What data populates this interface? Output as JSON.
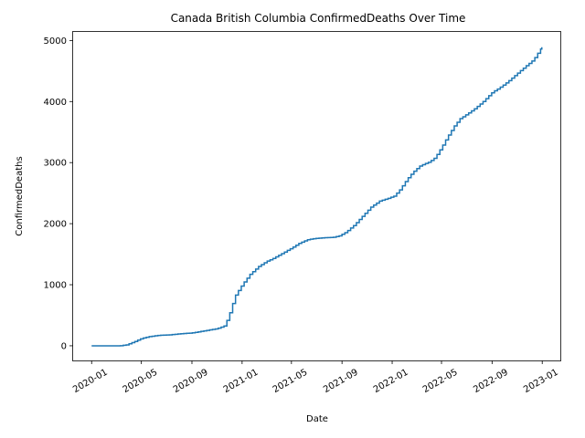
{
  "chart_data": {
    "type": "line",
    "title": "Canada British Columbia ConfirmedDeaths Over Time",
    "xlabel": "Date",
    "ylabel": "ConfirmedDeaths",
    "xlim": [
      "2019-11-17",
      "2023-02-14"
    ],
    "ylim": [
      -240,
      5140
    ],
    "x_ticks": [
      "2020-01",
      "2020-05",
      "2020-09",
      "2021-01",
      "2021-05",
      "2021-09",
      "2022-01",
      "2022-05",
      "2022-09",
      "2023-01"
    ],
    "y_ticks": [
      0,
      1000,
      2000,
      3000,
      4000,
      5000
    ],
    "grid": false,
    "line_color": "#1f77b4",
    "series": [
      {
        "x": [
          "2020-01-01",
          "2020-03-10",
          "2020-03-25",
          "2020-04-15",
          "2020-05-01",
          "2020-05-20",
          "2020-06-10",
          "2020-07-10",
          "2020-08-01",
          "2020-09-01",
          "2020-10-01",
          "2020-11-01",
          "2020-11-20",
          "2020-12-01",
          "2020-12-15",
          "2021-01-01",
          "2021-01-20",
          "2021-02-10",
          "2021-03-01",
          "2021-03-20",
          "2021-04-10",
          "2021-05-01",
          "2021-05-20",
          "2021-06-10",
          "2021-07-01",
          "2021-07-20",
          "2021-08-10",
          "2021-08-25",
          "2021-09-10",
          "2021-10-01",
          "2021-10-20",
          "2021-11-10",
          "2021-12-01",
          "2021-12-20",
          "2022-01-05",
          "2022-01-20",
          "2022-02-05",
          "2022-02-20",
          "2022-03-10",
          "2022-04-01",
          "2022-04-15",
          "2022-05-01",
          "2022-05-15",
          "2022-06-01",
          "2022-06-15",
          "2022-07-01",
          "2022-07-20",
          "2022-08-10",
          "2022-09-01",
          "2022-09-20",
          "2022-10-10",
          "2022-11-01",
          "2022-11-20",
          "2022-12-10",
          "2022-12-31"
        ],
        "y": [
          0,
          0,
          15,
          70,
          120,
          150,
          170,
          180,
          195,
          210,
          245,
          280,
          330,
          520,
          820,
          1000,
          1170,
          1300,
          1380,
          1440,
          1520,
          1600,
          1680,
          1740,
          1760,
          1770,
          1775,
          1800,
          1860,
          1980,
          2120,
          2270,
          2370,
          2410,
          2450,
          2560,
          2720,
          2840,
          2950,
          3010,
          3080,
          3250,
          3420,
          3600,
          3720,
          3790,
          3880,
          4000,
          4150,
          4230,
          4330,
          4460,
          4570,
          4680,
          4890
        ]
      }
    ]
  }
}
